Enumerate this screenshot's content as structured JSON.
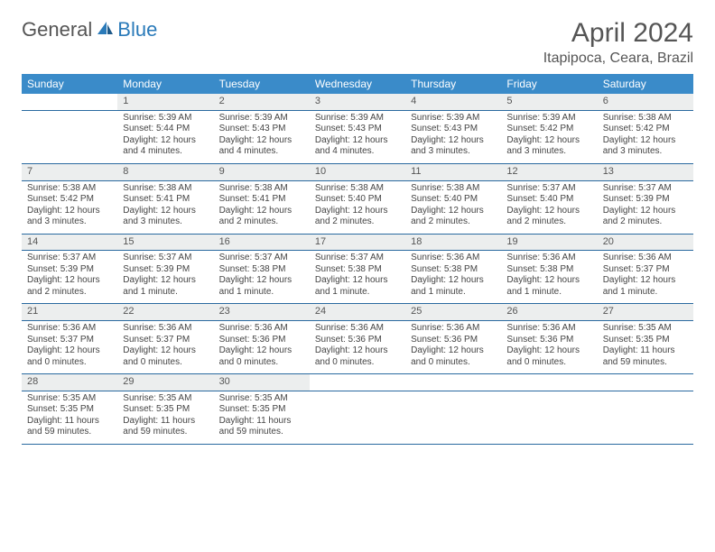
{
  "logo": {
    "text1": "General",
    "text2": "Blue",
    "color_general": "#555555",
    "color_blue": "#2a7ab9"
  },
  "title": "April 2024",
  "location": "Itapipoca, Ceara, Brazil",
  "colors": {
    "header_bg": "#3a8bc9",
    "header_fg": "#ffffff",
    "daynum_bg": "#eceeee",
    "row_border": "#2a6aa0",
    "text": "#444444"
  },
  "weekdays": [
    "Sunday",
    "Monday",
    "Tuesday",
    "Wednesday",
    "Thursday",
    "Friday",
    "Saturday"
  ],
  "weeks": [
    [
      {
        "n": "",
        "sr": "",
        "ss": "",
        "dl1": "",
        "dl2": ""
      },
      {
        "n": "1",
        "sr": "Sunrise: 5:39 AM",
        "ss": "Sunset: 5:44 PM",
        "dl1": "Daylight: 12 hours",
        "dl2": "and 4 minutes."
      },
      {
        "n": "2",
        "sr": "Sunrise: 5:39 AM",
        "ss": "Sunset: 5:43 PM",
        "dl1": "Daylight: 12 hours",
        "dl2": "and 4 minutes."
      },
      {
        "n": "3",
        "sr": "Sunrise: 5:39 AM",
        "ss": "Sunset: 5:43 PM",
        "dl1": "Daylight: 12 hours",
        "dl2": "and 4 minutes."
      },
      {
        "n": "4",
        "sr": "Sunrise: 5:39 AM",
        "ss": "Sunset: 5:43 PM",
        "dl1": "Daylight: 12 hours",
        "dl2": "and 3 minutes."
      },
      {
        "n": "5",
        "sr": "Sunrise: 5:39 AM",
        "ss": "Sunset: 5:42 PM",
        "dl1": "Daylight: 12 hours",
        "dl2": "and 3 minutes."
      },
      {
        "n": "6",
        "sr": "Sunrise: 5:38 AM",
        "ss": "Sunset: 5:42 PM",
        "dl1": "Daylight: 12 hours",
        "dl2": "and 3 minutes."
      }
    ],
    [
      {
        "n": "7",
        "sr": "Sunrise: 5:38 AM",
        "ss": "Sunset: 5:42 PM",
        "dl1": "Daylight: 12 hours",
        "dl2": "and 3 minutes."
      },
      {
        "n": "8",
        "sr": "Sunrise: 5:38 AM",
        "ss": "Sunset: 5:41 PM",
        "dl1": "Daylight: 12 hours",
        "dl2": "and 3 minutes."
      },
      {
        "n": "9",
        "sr": "Sunrise: 5:38 AM",
        "ss": "Sunset: 5:41 PM",
        "dl1": "Daylight: 12 hours",
        "dl2": "and 2 minutes."
      },
      {
        "n": "10",
        "sr": "Sunrise: 5:38 AM",
        "ss": "Sunset: 5:40 PM",
        "dl1": "Daylight: 12 hours",
        "dl2": "and 2 minutes."
      },
      {
        "n": "11",
        "sr": "Sunrise: 5:38 AM",
        "ss": "Sunset: 5:40 PM",
        "dl1": "Daylight: 12 hours",
        "dl2": "and 2 minutes."
      },
      {
        "n": "12",
        "sr": "Sunrise: 5:37 AM",
        "ss": "Sunset: 5:40 PM",
        "dl1": "Daylight: 12 hours",
        "dl2": "and 2 minutes."
      },
      {
        "n": "13",
        "sr": "Sunrise: 5:37 AM",
        "ss": "Sunset: 5:39 PM",
        "dl1": "Daylight: 12 hours",
        "dl2": "and 2 minutes."
      }
    ],
    [
      {
        "n": "14",
        "sr": "Sunrise: 5:37 AM",
        "ss": "Sunset: 5:39 PM",
        "dl1": "Daylight: 12 hours",
        "dl2": "and 2 minutes."
      },
      {
        "n": "15",
        "sr": "Sunrise: 5:37 AM",
        "ss": "Sunset: 5:39 PM",
        "dl1": "Daylight: 12 hours",
        "dl2": "and 1 minute."
      },
      {
        "n": "16",
        "sr": "Sunrise: 5:37 AM",
        "ss": "Sunset: 5:38 PM",
        "dl1": "Daylight: 12 hours",
        "dl2": "and 1 minute."
      },
      {
        "n": "17",
        "sr": "Sunrise: 5:37 AM",
        "ss": "Sunset: 5:38 PM",
        "dl1": "Daylight: 12 hours",
        "dl2": "and 1 minute."
      },
      {
        "n": "18",
        "sr": "Sunrise: 5:36 AM",
        "ss": "Sunset: 5:38 PM",
        "dl1": "Daylight: 12 hours",
        "dl2": "and 1 minute."
      },
      {
        "n": "19",
        "sr": "Sunrise: 5:36 AM",
        "ss": "Sunset: 5:38 PM",
        "dl1": "Daylight: 12 hours",
        "dl2": "and 1 minute."
      },
      {
        "n": "20",
        "sr": "Sunrise: 5:36 AM",
        "ss": "Sunset: 5:37 PM",
        "dl1": "Daylight: 12 hours",
        "dl2": "and 1 minute."
      }
    ],
    [
      {
        "n": "21",
        "sr": "Sunrise: 5:36 AM",
        "ss": "Sunset: 5:37 PM",
        "dl1": "Daylight: 12 hours",
        "dl2": "and 0 minutes."
      },
      {
        "n": "22",
        "sr": "Sunrise: 5:36 AM",
        "ss": "Sunset: 5:37 PM",
        "dl1": "Daylight: 12 hours",
        "dl2": "and 0 minutes."
      },
      {
        "n": "23",
        "sr": "Sunrise: 5:36 AM",
        "ss": "Sunset: 5:36 PM",
        "dl1": "Daylight: 12 hours",
        "dl2": "and 0 minutes."
      },
      {
        "n": "24",
        "sr": "Sunrise: 5:36 AM",
        "ss": "Sunset: 5:36 PM",
        "dl1": "Daylight: 12 hours",
        "dl2": "and 0 minutes."
      },
      {
        "n": "25",
        "sr": "Sunrise: 5:36 AM",
        "ss": "Sunset: 5:36 PM",
        "dl1": "Daylight: 12 hours",
        "dl2": "and 0 minutes."
      },
      {
        "n": "26",
        "sr": "Sunrise: 5:36 AM",
        "ss": "Sunset: 5:36 PM",
        "dl1": "Daylight: 12 hours",
        "dl2": "and 0 minutes."
      },
      {
        "n": "27",
        "sr": "Sunrise: 5:35 AM",
        "ss": "Sunset: 5:35 PM",
        "dl1": "Daylight: 11 hours",
        "dl2": "and 59 minutes."
      }
    ],
    [
      {
        "n": "28",
        "sr": "Sunrise: 5:35 AM",
        "ss": "Sunset: 5:35 PM",
        "dl1": "Daylight: 11 hours",
        "dl2": "and 59 minutes."
      },
      {
        "n": "29",
        "sr": "Sunrise: 5:35 AM",
        "ss": "Sunset: 5:35 PM",
        "dl1": "Daylight: 11 hours",
        "dl2": "and 59 minutes."
      },
      {
        "n": "30",
        "sr": "Sunrise: 5:35 AM",
        "ss": "Sunset: 5:35 PM",
        "dl1": "Daylight: 11 hours",
        "dl2": "and 59 minutes."
      },
      {
        "n": "",
        "sr": "",
        "ss": "",
        "dl1": "",
        "dl2": ""
      },
      {
        "n": "",
        "sr": "",
        "ss": "",
        "dl1": "",
        "dl2": ""
      },
      {
        "n": "",
        "sr": "",
        "ss": "",
        "dl1": "",
        "dl2": ""
      },
      {
        "n": "",
        "sr": "",
        "ss": "",
        "dl1": "",
        "dl2": ""
      }
    ]
  ]
}
